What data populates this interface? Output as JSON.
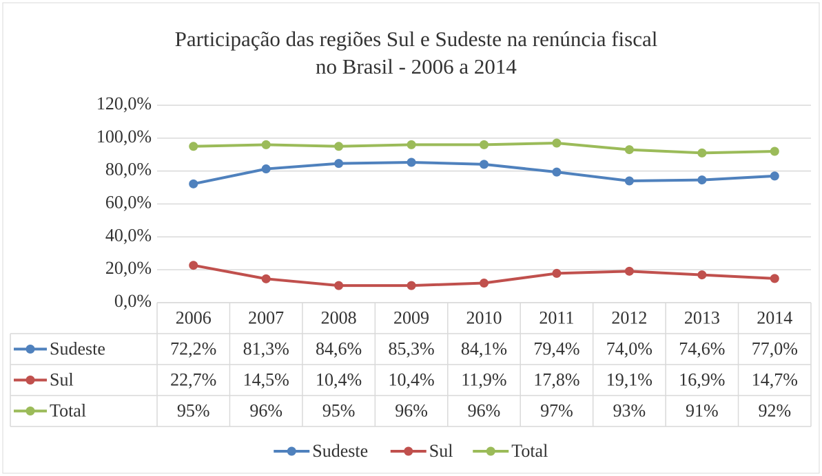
{
  "chart_data": {
    "type": "line",
    "title": "Participação das regiões Sul e Sudeste na renúncia fiscal",
    "subtitle": "no Brasil - 2006 a 2014",
    "categories": [
      "2006",
      "2007",
      "2008",
      "2009",
      "2010",
      "2011",
      "2012",
      "2013",
      "2014"
    ],
    "series": [
      {
        "name": "Sudeste",
        "color": "#4f81bd",
        "values": [
          72.2,
          81.3,
          84.6,
          85.3,
          84.1,
          79.4,
          74.0,
          74.6,
          77.0
        ],
        "value_labels": [
          "72,2%",
          "81,3%",
          "84,6%",
          "85,3%",
          "84,1%",
          "79,4%",
          "74,0%",
          "74,6%",
          "77,0%"
        ]
      },
      {
        "name": "Sul",
        "color": "#c0504d",
        "values": [
          22.7,
          14.5,
          10.4,
          10.4,
          11.9,
          17.8,
          19.1,
          16.9,
          14.7
        ],
        "value_labels": [
          "22,7%",
          "14,5%",
          "10,4%",
          "10,4%",
          "11,9%",
          "17,8%",
          "19,1%",
          "16,9%",
          "14,7%"
        ]
      },
      {
        "name": "Total",
        "color": "#9bbb59",
        "values": [
          95,
          96,
          95,
          96,
          96,
          97,
          93,
          91,
          92
        ],
        "value_labels": [
          "95%",
          "96%",
          "95%",
          "96%",
          "96%",
          "97%",
          "93%",
          "91%",
          "92%"
        ]
      }
    ],
    "ylim": [
      0,
      120
    ],
    "yticks": [
      {
        "value": 0,
        "label": "0,0%"
      },
      {
        "value": 20,
        "label": "20,0%"
      },
      {
        "value": 40,
        "label": "40,0%"
      },
      {
        "value": 60,
        "label": "60,0%"
      },
      {
        "value": 80,
        "label": "80,0%"
      },
      {
        "value": 100,
        "label": "100,0%"
      },
      {
        "value": 120,
        "label": "120,0%"
      }
    ],
    "grid": true,
    "legend": "bottom"
  }
}
